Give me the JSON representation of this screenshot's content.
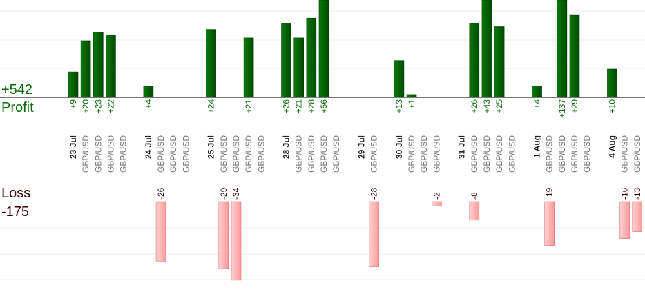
{
  "chart_data": {
    "type": "bar",
    "profit": {
      "total": "+542",
      "label": "Profit",
      "color": "#0a6b0a",
      "bars": [
        {
          "slot": 0,
          "value": 9,
          "label": "+9"
        },
        {
          "slot": 1,
          "value": 20,
          "label": "+20"
        },
        {
          "slot": 2,
          "value": 23,
          "label": "+23"
        },
        {
          "slot": 3,
          "value": 22,
          "label": "+22"
        },
        {
          "slot": 6,
          "value": 4,
          "label": "+4"
        },
        {
          "slot": 11,
          "value": 24,
          "label": "+24"
        },
        {
          "slot": 14,
          "value": 21,
          "label": "+21"
        },
        {
          "slot": 17,
          "value": 26,
          "label": "+26"
        },
        {
          "slot": 18,
          "value": 21,
          "label": "+21"
        },
        {
          "slot": 19,
          "value": 28,
          "label": "+28"
        },
        {
          "slot": 20,
          "value": 56,
          "label": "+56"
        },
        {
          "slot": 26,
          "value": 13,
          "label": "+13"
        },
        {
          "slot": 27,
          "value": 1,
          "label": "+1"
        },
        {
          "slot": 32,
          "value": 26,
          "label": "+26"
        },
        {
          "slot": 33,
          "value": 43,
          "label": "+43"
        },
        {
          "slot": 34,
          "value": 25,
          "label": "+25"
        },
        {
          "slot": 37,
          "value": 4,
          "label": "+4"
        },
        {
          "slot": 39,
          "value": 137,
          "label": "+137"
        },
        {
          "slot": 40,
          "value": 29,
          "label": "+29"
        },
        {
          "slot": 43,
          "value": 10,
          "label": "+10"
        }
      ]
    },
    "loss": {
      "total": "-175",
      "label": "Loss",
      "color": "#ffb3b3",
      "bars": [
        {
          "slot": 7,
          "value": -26,
          "label": "-26"
        },
        {
          "slot": 12,
          "value": -29,
          "label": "-29"
        },
        {
          "slot": 13,
          "value": -34,
          "label": "-34"
        },
        {
          "slot": 24,
          "value": -28,
          "label": "-28"
        },
        {
          "slot": 29,
          "value": -2,
          "label": "-2"
        },
        {
          "slot": 32,
          "value": -8,
          "label": "-8"
        },
        {
          "slot": 38,
          "value": -19,
          "label": "-19"
        },
        {
          "slot": 44,
          "value": -16,
          "label": "-16"
        },
        {
          "slot": 45,
          "value": -13,
          "label": "-13"
        }
      ]
    },
    "categories": [
      {
        "slot": 0,
        "text": "23 Jul",
        "bold": true
      },
      {
        "slot": 1,
        "text": "GBP/USD",
        "bold": false
      },
      {
        "slot": 2,
        "text": "GBP/USD",
        "bold": false
      },
      {
        "slot": 3,
        "text": "GBP/USD",
        "bold": false
      },
      {
        "slot": 4,
        "text": "GBP/USD",
        "bold": false
      },
      {
        "slot": 6,
        "text": "24 Jul",
        "bold": true
      },
      {
        "slot": 7,
        "text": "GBP/USD",
        "bold": false
      },
      {
        "slot": 8,
        "text": "GBP/USD",
        "bold": false
      },
      {
        "slot": 9,
        "text": "GBP/USD",
        "bold": false
      },
      {
        "slot": 11,
        "text": "25 Jul",
        "bold": true
      },
      {
        "slot": 12,
        "text": "GBP/USD",
        "bold": false
      },
      {
        "slot": 13,
        "text": "GBP/USD",
        "bold": false
      },
      {
        "slot": 14,
        "text": "GBP/USD",
        "bold": false
      },
      {
        "slot": 15,
        "text": "GBP/USD",
        "bold": false
      },
      {
        "slot": 17,
        "text": "28 Jul",
        "bold": true
      },
      {
        "slot": 18,
        "text": "GBP/USD",
        "bold": false
      },
      {
        "slot": 19,
        "text": "GBP/USD",
        "bold": false
      },
      {
        "slot": 20,
        "text": "GBP/USD",
        "bold": false
      },
      {
        "slot": 21,
        "text": "GBP/USD",
        "bold": false
      },
      {
        "slot": 23,
        "text": "29 Jul",
        "bold": true
      },
      {
        "slot": 24,
        "text": "GBP/USD",
        "bold": false
      },
      {
        "slot": 26,
        "text": "30 Jul",
        "bold": true
      },
      {
        "slot": 27,
        "text": "GBP/USD",
        "bold": false
      },
      {
        "slot": 28,
        "text": "GBP/USD",
        "bold": false
      },
      {
        "slot": 29,
        "text": "GBP/USD",
        "bold": false
      },
      {
        "slot": 31,
        "text": "31 Jul",
        "bold": true
      },
      {
        "slot": 32,
        "text": "GBP/USD",
        "bold": false
      },
      {
        "slot": 33,
        "text": "GBP/USD",
        "bold": false
      },
      {
        "slot": 34,
        "text": "GBP/USD",
        "bold": false
      },
      {
        "slot": 35,
        "text": "GBP/USD",
        "bold": false
      },
      {
        "slot": 37,
        "text": "1 Aug",
        "bold": true
      },
      {
        "slot": 38,
        "text": "GBP/USD",
        "bold": false
      },
      {
        "slot": 39,
        "text": "GBP/USD",
        "bold": false
      },
      {
        "slot": 40,
        "text": "GBP/USD",
        "bold": false
      },
      {
        "slot": 41,
        "text": "GBP/USD",
        "bold": false
      },
      {
        "slot": 43,
        "text": "4 Aug",
        "bold": true
      },
      {
        "slot": 44,
        "text": "GBP/USD",
        "bold": false
      },
      {
        "slot": 45,
        "text": "GBP/USD",
        "bold": false
      }
    ],
    "grid": true
  }
}
